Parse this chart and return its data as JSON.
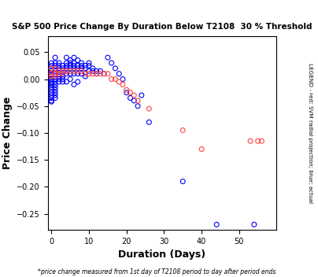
{
  "title": "S&P 500 Price Change By Duration Below T2108  30 % Threshold",
  "xlabel": "Duration (Days)",
  "ylabel": "Price Change",
  "footnote": "*price change measured from 1st day of T2108 period to day after period ends",
  "legend_text": "LEGEND - red: SVM radial projection; blue: actual",
  "xlim": [
    -1,
    60
  ],
  "ylim": [
    -0.28,
    0.08
  ],
  "yticks": [
    0.05,
    0.0,
    -0.05,
    -0.1,
    -0.15,
    -0.2,
    -0.25
  ],
  "xticks": [
    0,
    10,
    20,
    30,
    40,
    50
  ],
  "blue_x": [
    0,
    0,
    0,
    0,
    0,
    0,
    0,
    0,
    0,
    0,
    0,
    0,
    0,
    0,
    0,
    0,
    0,
    0,
    0,
    0,
    1,
    1,
    1,
    1,
    1,
    1,
    1,
    1,
    1,
    1,
    1,
    1,
    1,
    1,
    1,
    2,
    2,
    2,
    2,
    2,
    2,
    2,
    2,
    3,
    3,
    3,
    3,
    3,
    3,
    3,
    4,
    4,
    4,
    4,
    4,
    4,
    4,
    5,
    5,
    5,
    5,
    5,
    5,
    6,
    6,
    6,
    6,
    6,
    6,
    7,
    7,
    7,
    7,
    7,
    8,
    8,
    8,
    8,
    9,
    9,
    9,
    9,
    10,
    10,
    10,
    11,
    11,
    12,
    12,
    13,
    14,
    15,
    16,
    17,
    18,
    19,
    20,
    21,
    22,
    23,
    24,
    26,
    35,
    44,
    54
  ],
  "blue_y": [
    0.02,
    0.03,
    0.01,
    0.025,
    0.015,
    0.005,
    0.0,
    0.01,
    -0.005,
    -0.01,
    -0.015,
    -0.02,
    -0.025,
    -0.03,
    -0.035,
    -0.04,
    -0.042,
    -0.005,
    0.008,
    -0.008,
    0.04,
    0.03,
    0.025,
    0.02,
    0.015,
    0.01,
    0.005,
    0.0,
    -0.005,
    -0.01,
    -0.015,
    -0.02,
    -0.025,
    -0.03,
    -0.035,
    0.03,
    0.025,
    0.02,
    0.015,
    0.01,
    0.005,
    0.0,
    -0.005,
    0.025,
    0.02,
    0.015,
    0.01,
    0.005,
    0.0,
    -0.005,
    0.04,
    0.03,
    0.025,
    0.02,
    0.015,
    0.01,
    -0.005,
    0.035,
    0.03,
    0.025,
    0.02,
    0.01,
    0.0,
    0.04,
    0.03,
    0.025,
    0.02,
    0.01,
    -0.01,
    0.035,
    0.025,
    0.02,
    0.01,
    -0.005,
    0.03,
    0.025,
    0.02,
    0.01,
    0.025,
    0.02,
    0.01,
    0.005,
    0.03,
    0.025,
    0.015,
    0.02,
    0.015,
    0.015,
    0.01,
    0.015,
    0.01,
    0.04,
    0.03,
    0.02,
    0.01,
    0.0,
    -0.025,
    -0.035,
    -0.04,
    -0.05,
    -0.03,
    -0.08,
    -0.19,
    -0.27,
    -0.27
  ],
  "red_x": [
    0,
    0,
    0,
    1,
    1,
    1,
    2,
    2,
    3,
    3,
    4,
    5,
    6,
    7,
    8,
    9,
    10,
    11,
    12,
    13,
    14,
    15,
    16,
    17,
    18,
    19,
    20,
    21,
    22,
    23,
    26,
    35,
    40,
    53,
    55,
    56
  ],
  "red_y": [
    0.02,
    0.01,
    0.005,
    0.02,
    0.01,
    0.005,
    0.015,
    0.01,
    0.015,
    0.01,
    0.015,
    0.015,
    0.015,
    0.015,
    0.015,
    0.01,
    0.01,
    0.01,
    0.01,
    0.01,
    0.01,
    0.01,
    0.0,
    0.0,
    -0.005,
    -0.01,
    -0.02,
    -0.025,
    -0.03,
    -0.04,
    -0.055,
    -0.095,
    -0.13,
    -0.115,
    -0.115,
    -0.115
  ],
  "blue_color": "#0000FF",
  "red_color": "#FF4444",
  "marker_size": 18,
  "bg_color": "#FFFFFF",
  "axis_bg": "#FFFFFF"
}
